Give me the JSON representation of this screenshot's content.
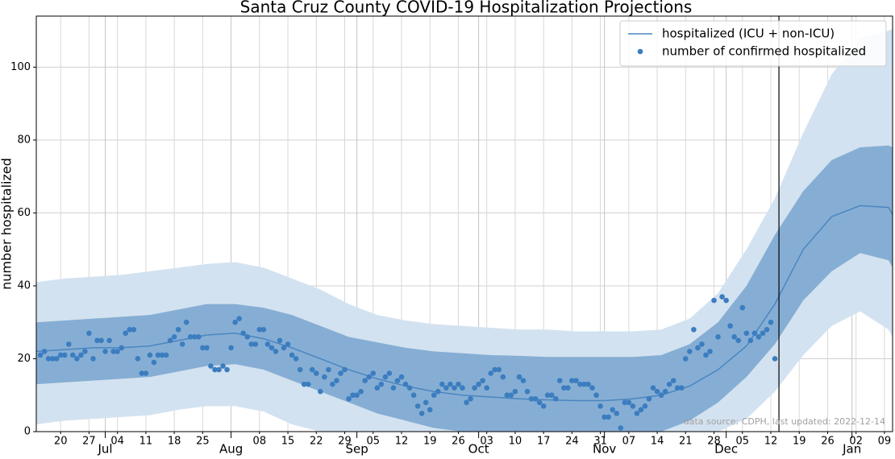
{
  "chart_data": {
    "type": "line",
    "title": "Santa Cruz County COVID-19 Hospitalization Projections",
    "ylabel": "number hospitalized",
    "annotation": "data source: CDPH, last updated: 2022-12-14",
    "vline": "12-14",
    "legend": "upper right",
    "grid": true,
    "xlim": [
      "06-14",
      "01-11"
    ],
    "ylim": [
      0,
      114
    ],
    "yticks": [
      0,
      20,
      40,
      60,
      80,
      100
    ],
    "xticks": [
      {
        "value": "06-20",
        "label": "20"
      },
      {
        "value": "06-27",
        "label": "27"
      },
      {
        "value": "07-04",
        "label": "04"
      },
      {
        "value": "07-11",
        "label": "11"
      },
      {
        "value": "07-18",
        "label": "18"
      },
      {
        "value": "07-25",
        "label": "25"
      },
      {
        "value": "08-08",
        "label": "08"
      },
      {
        "value": "08-15",
        "label": "15"
      },
      {
        "value": "08-22",
        "label": "22"
      },
      {
        "value": "08-29",
        "label": "29"
      },
      {
        "value": "09-05",
        "label": "05"
      },
      {
        "value": "09-12",
        "label": "12"
      },
      {
        "value": "09-19",
        "label": "19"
      },
      {
        "value": "09-26",
        "label": "26"
      },
      {
        "value": "10-03",
        "label": "03"
      },
      {
        "value": "10-10",
        "label": "10"
      },
      {
        "value": "10-17",
        "label": "17"
      },
      {
        "value": "10-24",
        "label": "24"
      },
      {
        "value": "10-31",
        "label": "31"
      },
      {
        "value": "11-07",
        "label": "07"
      },
      {
        "value": "11-14",
        "label": "14"
      },
      {
        "value": "11-21",
        "label": "21"
      },
      {
        "value": "11-28",
        "label": "28"
      },
      {
        "value": "12-05",
        "label": "05"
      },
      {
        "value": "12-12",
        "label": "12"
      },
      {
        "value": "12-19",
        "label": "19"
      },
      {
        "value": "12-26",
        "label": "26"
      },
      {
        "value": "01-02",
        "label": "02"
      },
      {
        "value": "01-09",
        "label": "09"
      }
    ],
    "month_ticks": [
      {
        "value": "07-01",
        "label": "Jul"
      },
      {
        "value": "08-01",
        "label": "Aug"
      },
      {
        "value": "09-01",
        "label": "Sep"
      },
      {
        "value": "10-01",
        "label": "Oct"
      },
      {
        "value": "11-01",
        "label": "Nov"
      },
      {
        "value": "12-01",
        "label": "Dec"
      },
      {
        "value": "01-01",
        "label": "Jan"
      }
    ],
    "bands": [
      {
        "color": "#d3e2f0",
        "x": [
          "06-14",
          "06-21",
          "06-28",
          "07-05",
          "07-12",
          "07-19",
          "07-26",
          "08-02",
          "08-09",
          "08-16",
          "08-23",
          "08-30",
          "09-06",
          "09-13",
          "09-20",
          "09-27",
          "10-04",
          "10-11",
          "10-18",
          "10-25",
          "11-01",
          "11-08",
          "11-15",
          "11-22",
          "11-29",
          "12-06",
          "12-13",
          "12-20",
          "12-27",
          "01-03",
          "01-10",
          "01-11"
        ],
        "upper": [
          41,
          42,
          42.5,
          43,
          44,
          45,
          46,
          46.5,
          45,
          42,
          39,
          35,
          32,
          30.5,
          29.5,
          29,
          28.5,
          28,
          28,
          27.5,
          27.5,
          27.5,
          28,
          31,
          38,
          50,
          64,
          82,
          98,
          108,
          110,
          110.5
        ],
        "lower": [
          2,
          3,
          3.5,
          4,
          4.5,
          6,
          7,
          7,
          5.5,
          2,
          0,
          0,
          0,
          0,
          0,
          0,
          0,
          0,
          0,
          0,
          0,
          0,
          0,
          0,
          0,
          3.5,
          11,
          21,
          29,
          33,
          28,
          26
        ]
      },
      {
        "color": "#86aed4",
        "x": [
          "06-14",
          "06-21",
          "06-28",
          "07-05",
          "07-12",
          "07-19",
          "07-26",
          "08-02",
          "08-09",
          "08-16",
          "08-23",
          "08-30",
          "09-06",
          "09-13",
          "09-20",
          "09-27",
          "10-04",
          "10-11",
          "10-18",
          "10-25",
          "11-01",
          "11-08",
          "11-15",
          "11-22",
          "11-29",
          "12-06",
          "12-13",
          "12-20",
          "12-27",
          "01-03",
          "01-10",
          "01-11"
        ],
        "upper": [
          30,
          30.5,
          31,
          31.5,
          32,
          33.5,
          35,
          35,
          34,
          32,
          29,
          26,
          24.5,
          23,
          22,
          21.5,
          21,
          20.8,
          20.5,
          20.5,
          20.5,
          20.5,
          21,
          24,
          30,
          40,
          54,
          66,
          74.5,
          78,
          78.5,
          78
        ],
        "lower": [
          13,
          13.5,
          14,
          14.5,
          15,
          16.5,
          18,
          18.5,
          17,
          14,
          11,
          8,
          5,
          3,
          1,
          0,
          0,
          0,
          0,
          0,
          0,
          0,
          0,
          3,
          8,
          15,
          24,
          36,
          44,
          49,
          47,
          45
        ]
      }
    ],
    "series": [
      {
        "name": "hospitalized (ICU + non-ICU)",
        "type": "line",
        "color": "#4a86c1",
        "x": [
          "06-14",
          "06-21",
          "06-28",
          "07-05",
          "07-12",
          "07-19",
          "07-26",
          "08-02",
          "08-09",
          "08-16",
          "08-23",
          "08-30",
          "09-06",
          "09-13",
          "09-20",
          "09-27",
          "10-04",
          "10-11",
          "10-18",
          "10-25",
          "11-01",
          "11-08",
          "11-15",
          "11-22",
          "11-29",
          "12-06",
          "12-13",
          "12-20",
          "12-27",
          "01-03",
          "01-10",
          "01-11"
        ],
        "values": [
          22,
          22.5,
          23,
          23,
          23.5,
          25,
          26.5,
          27,
          25.5,
          23,
          20,
          17,
          14.5,
          12.5,
          11,
          10,
          9.5,
          9,
          8.7,
          8.5,
          8.5,
          9,
          10,
          12.5,
          17,
          23.5,
          35,
          50,
          59,
          62,
          61.5,
          59.5
        ]
      },
      {
        "name": "number of confirmed hospitalized",
        "type": "scatter",
        "color": "#3b7dbf",
        "x": [
          "06-15",
          "06-16",
          "06-17",
          "06-18",
          "06-19",
          "06-20",
          "06-21",
          "06-22",
          "06-23",
          "06-24",
          "06-25",
          "06-26",
          "06-27",
          "06-28",
          "06-29",
          "06-30",
          "07-01",
          "07-02",
          "07-03",
          "07-04",
          "07-05",
          "07-06",
          "07-07",
          "07-08",
          "07-09",
          "07-10",
          "07-11",
          "07-12",
          "07-13",
          "07-14",
          "07-15",
          "07-16",
          "07-17",
          "07-18",
          "07-19",
          "07-20",
          "07-21",
          "07-22",
          "07-23",
          "07-24",
          "07-25",
          "07-26",
          "07-27",
          "07-28",
          "07-29",
          "07-30",
          "07-31",
          "08-01",
          "08-02",
          "08-03",
          "08-04",
          "08-05",
          "08-06",
          "08-07",
          "08-08",
          "08-09",
          "08-10",
          "08-11",
          "08-12",
          "08-13",
          "08-14",
          "08-15",
          "08-16",
          "08-17",
          "08-18",
          "08-19",
          "08-20",
          "08-21",
          "08-22",
          "08-23",
          "08-24",
          "08-25",
          "08-26",
          "08-27",
          "08-28",
          "08-29",
          "08-30",
          "08-31",
          "09-01",
          "09-02",
          "09-03",
          "09-04",
          "09-05",
          "09-06",
          "09-07",
          "09-08",
          "09-09",
          "09-10",
          "09-11",
          "09-12",
          "09-13",
          "09-14",
          "09-15",
          "09-16",
          "09-17",
          "09-18",
          "09-19",
          "09-20",
          "09-21",
          "09-22",
          "09-23",
          "09-24",
          "09-25",
          "09-26",
          "09-27",
          "09-28",
          "09-29",
          "09-30",
          "10-01",
          "10-02",
          "10-03",
          "10-04",
          "10-05",
          "10-06",
          "10-07",
          "10-08",
          "10-09",
          "10-10",
          "10-11",
          "10-12",
          "10-13",
          "10-14",
          "10-15",
          "10-16",
          "10-17",
          "10-18",
          "10-19",
          "10-20",
          "10-21",
          "10-22",
          "10-23",
          "10-24",
          "10-25",
          "10-26",
          "10-27",
          "10-28",
          "10-29",
          "10-30",
          "10-31",
          "11-01",
          "11-02",
          "11-03",
          "11-04",
          "11-05",
          "11-06",
          "11-07",
          "11-08",
          "11-09",
          "11-10",
          "11-11",
          "11-12",
          "11-13",
          "11-14",
          "11-15",
          "11-16",
          "11-17",
          "11-18",
          "11-19",
          "11-20",
          "11-21",
          "11-22",
          "11-23",
          "11-24",
          "11-25",
          "11-26",
          "11-27",
          "11-28",
          "11-29",
          "11-30",
          "12-01",
          "12-02",
          "12-03",
          "12-04",
          "12-05",
          "12-06",
          "12-07",
          "12-08",
          "12-09",
          "12-10",
          "12-11",
          "12-12",
          "12-13"
        ],
        "values": [
          21,
          22,
          20,
          20,
          20,
          21,
          21,
          24,
          21,
          20,
          21,
          22,
          27,
          20,
          25,
          25,
          22,
          25,
          22,
          22,
          23,
          27,
          28,
          28,
          20,
          16,
          16,
          21,
          19,
          21,
          21,
          21,
          25,
          26,
          28,
          24,
          30,
          26,
          26,
          26,
          23,
          23,
          18,
          17,
          17,
          18,
          17,
          23,
          30,
          31,
          27,
          26,
          24,
          24,
          28,
          28,
          24,
          23,
          22,
          25,
          23,
          24,
          21,
          20,
          17,
          13,
          13,
          17,
          16,
          11,
          15,
          17,
          13,
          14,
          16,
          17,
          9,
          10,
          10,
          11,
          14,
          15,
          16,
          12,
          13,
          15,
          16,
          12,
          14,
          15,
          13,
          12,
          10,
          7,
          5,
          8,
          6,
          10,
          11,
          13,
          12,
          13,
          12,
          13,
          12,
          8,
          9,
          12,
          13,
          14,
          12,
          16,
          17,
          17,
          15,
          10,
          10,
          11,
          15,
          14,
          11,
          9,
          9,
          8,
          7,
          10,
          10,
          9,
          14,
          12,
          12,
          14,
          14,
          13,
          13,
          13,
          12,
          10,
          7,
          4,
          4,
          6,
          5,
          1,
          8,
          8,
          7,
          5,
          6,
          7,
          9,
          12,
          11,
          10,
          11,
          13,
          14,
          12,
          12,
          20,
          22,
          28,
          23,
          24,
          21,
          22,
          36,
          26,
          37,
          36,
          29,
          26,
          25,
          34,
          27,
          25,
          27,
          26,
          27,
          28,
          30,
          20
        ]
      }
    ]
  }
}
